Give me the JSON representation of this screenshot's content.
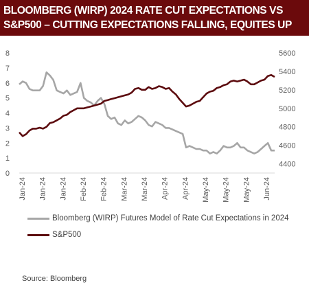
{
  "title": "BLOOMBERG (WIRP) 2024 RATE CUT EXPECTATIONS VS\nS&P500 – CUTTING EXPECTATIONS FALLING, EQUITES UP",
  "source": "Source: Bloomberg",
  "colors": {
    "banner": "#6b0a0c",
    "wirp": "#a6a6a6",
    "spx": "#5c0b0e"
  },
  "chart_data": {
    "type": "line",
    "grid": false,
    "legend_position": "bottom",
    "x_tick_labels": [
      "Jan-24",
      "Jan-24",
      "Jan-24",
      "Feb-24",
      "Feb-24",
      "Mar-24",
      "Mar-24",
      "Apr-24",
      "Apr-24",
      "May-24",
      "May-24",
      "May-24",
      "Jun-24"
    ],
    "y_left": {
      "ticks": [
        0,
        1,
        2,
        3,
        4,
        5,
        6,
        7,
        8
      ],
      "range": [
        0,
        8
      ]
    },
    "y_right": {
      "ticks": [
        4400,
        4600,
        4800,
        5000,
        5200,
        5400,
        5600
      ],
      "range": [
        4300,
        5600
      ]
    },
    "series": [
      {
        "name": "Bloomberg (WIRP) Futures Model of Rate Cut Expectations in 2024",
        "axis": "left",
        "values": [
          5.9,
          6.1,
          6.0,
          5.6,
          5.5,
          5.5,
          5.5,
          5.8,
          6.7,
          6.5,
          6.2,
          5.5,
          5.4,
          5.3,
          5.5,
          5.2,
          5.3,
          5.4,
          6.0,
          5.0,
          4.8,
          4.7,
          4.5,
          4.8,
          5.0,
          4.6,
          3.8,
          3.6,
          3.7,
          3.3,
          3.2,
          3.5,
          3.3,
          3.4,
          3.6,
          3.8,
          3.7,
          3.5,
          3.2,
          3.1,
          3.4,
          3.3,
          3.2,
          3.0,
          3.0,
          2.9,
          2.8,
          2.7,
          2.6,
          1.7,
          1.8,
          1.7,
          1.6,
          1.6,
          1.5,
          1.5,
          1.3,
          1.4,
          1.3,
          1.5,
          1.8,
          1.7,
          1.7,
          1.8,
          2.0,
          1.7,
          1.7,
          1.5,
          1.4,
          1.3,
          1.4,
          1.6,
          1.8,
          2.0,
          1.5,
          1.5
        ]
      },
      {
        "name": "S&P500",
        "axis": "right",
        "values": [
          4740,
          4700,
          4720,
          4760,
          4780,
          4780,
          4790,
          4780,
          4800,
          4840,
          4850,
          4870,
          4890,
          4920,
          4930,
          4960,
          4980,
          5000,
          5000,
          5000,
          5010,
          5020,
          5030,
          5040,
          5050,
          5080,
          5090,
          5100,
          5110,
          5120,
          5130,
          5140,
          5150,
          5170,
          5210,
          5220,
          5200,
          5200,
          5230,
          5210,
          5220,
          5240,
          5230,
          5210,
          5220,
          5180,
          5150,
          5100,
          5060,
          5020,
          5030,
          5050,
          5070,
          5080,
          5120,
          5160,
          5180,
          5190,
          5220,
          5230,
          5250,
          5260,
          5290,
          5300,
          5290,
          5300,
          5310,
          5290,
          5260,
          5260,
          5280,
          5300,
          5310,
          5350,
          5360,
          5340
        ]
      }
    ]
  }
}
